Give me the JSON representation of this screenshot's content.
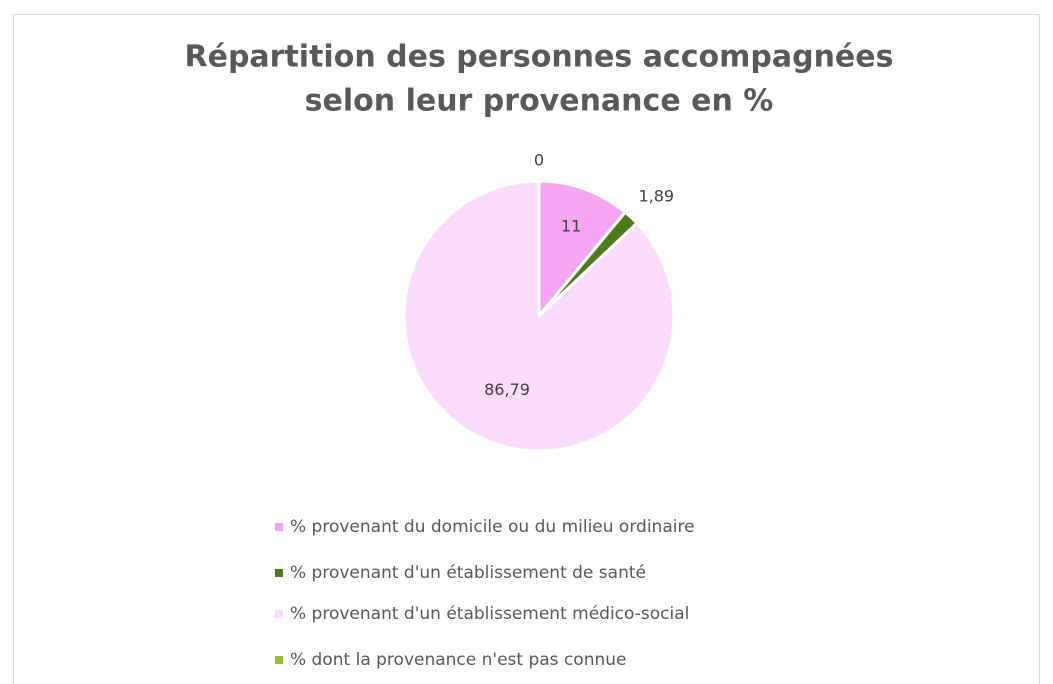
{
  "chart_data": {
    "type": "pie",
    "title": [
      "Répartition des personnes accompagnées",
      "selon leur provenance en %"
    ],
    "categories": [
      "% provenant du domicile ou du milieu ordinaire",
      " % provenant d'un établissement de santé",
      "% provenant d'un établissement médico-social",
      " % dont la provenance n'est pas connue"
    ],
    "values": [
      11,
      1.89,
      86.79,
      0
    ],
    "value_labels": [
      "11",
      "1,89",
      "86,79",
      "0"
    ],
    "colors": [
      "#f8a6f3",
      "#4d7b19",
      "#fcdcfc",
      "#93c12e"
    ],
    "legend": "bottom"
  }
}
